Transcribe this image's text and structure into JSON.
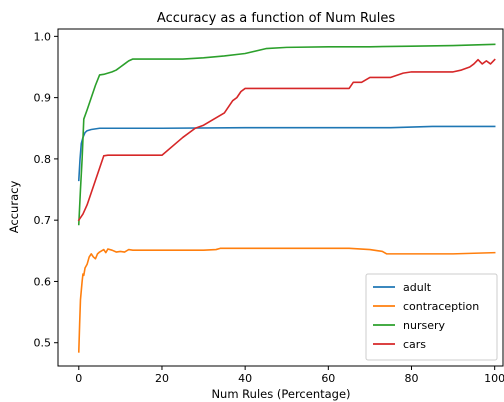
{
  "chart_data": {
    "type": "line",
    "title": "Accuracy as a function of Num Rules",
    "xlabel": "Num Rules (Percentage)",
    "ylabel": "Accuracy",
    "xlim": [
      -5,
      102
    ],
    "ylim": [
      0.462,
      1.012
    ],
    "xticks": [
      0,
      20,
      40,
      60,
      80,
      100
    ],
    "yticks": [
      0.5,
      0.6,
      0.7,
      0.8,
      0.9,
      1.0
    ],
    "ytick_labels": [
      "0.5",
      "0.6",
      "0.7",
      "0.8",
      "0.9",
      "1.0"
    ],
    "grid": false,
    "legend_position": "bottom-right",
    "series": [
      {
        "name": "adult",
        "color": "#1f77b4",
        "x": [
          0,
          0.3,
          0.6,
          1,
          1.5,
          2,
          3,
          5,
          10,
          20,
          40,
          60,
          75,
          80,
          85,
          100
        ],
        "y": [
          0.765,
          0.8,
          0.825,
          0.835,
          0.843,
          0.846,
          0.848,
          0.85,
          0.85,
          0.85,
          0.851,
          0.851,
          0.851,
          0.852,
          0.853,
          0.853
        ]
      },
      {
        "name": "contraception",
        "color": "#ff7f0e",
        "x": [
          0,
          0.2,
          0.4,
          0.6,
          0.8,
          1,
          1.2,
          1.5,
          2,
          2.5,
          3,
          3.5,
          4,
          4.5,
          5,
          6,
          6.5,
          7,
          8,
          9,
          10,
          11,
          12,
          13,
          20,
          30,
          33,
          34,
          40,
          50,
          60,
          65,
          70,
          72,
          73,
          74,
          80,
          90,
          95,
          100
        ],
        "y": [
          0.485,
          0.53,
          0.57,
          0.585,
          0.6,
          0.612,
          0.61,
          0.622,
          0.628,
          0.64,
          0.645,
          0.64,
          0.637,
          0.645,
          0.648,
          0.652,
          0.647,
          0.653,
          0.651,
          0.648,
          0.649,
          0.648,
          0.652,
          0.651,
          0.651,
          0.651,
          0.652,
          0.654,
          0.654,
          0.654,
          0.654,
          0.654,
          0.652,
          0.65,
          0.649,
          0.645,
          0.645,
          0.645,
          0.646,
          0.647
        ]
      },
      {
        "name": "nursery",
        "color": "#2ca02c",
        "x": [
          0,
          0.4,
          0.8,
          1.2,
          2,
          3,
          4,
          5,
          6,
          7,
          8,
          9,
          10,
          11,
          12,
          13,
          20,
          25,
          30,
          35,
          40,
          45,
          50,
          60,
          70,
          80,
          90,
          95,
          100
        ],
        "y": [
          0.693,
          0.75,
          0.8,
          0.865,
          0.88,
          0.9,
          0.92,
          0.937,
          0.938,
          0.94,
          0.942,
          0.945,
          0.95,
          0.955,
          0.96,
          0.963,
          0.963,
          0.963,
          0.965,
          0.968,
          0.972,
          0.98,
          0.982,
          0.983,
          0.983,
          0.984,
          0.985,
          0.986,
          0.987
        ]
      },
      {
        "name": "cars",
        "color": "#d62728",
        "x": [
          0,
          1,
          2,
          3,
          4,
          5,
          6,
          7,
          20,
          25,
          28,
          30,
          35,
          37,
          38,
          39,
          40,
          45,
          50,
          55,
          60,
          65,
          66,
          68,
          70,
          75,
          78,
          80,
          85,
          90,
          92,
          94,
          95,
          96,
          97,
          98,
          99,
          100
        ],
        "y": [
          0.7,
          0.71,
          0.725,
          0.745,
          0.765,
          0.785,
          0.805,
          0.806,
          0.806,
          0.835,
          0.85,
          0.855,
          0.875,
          0.895,
          0.9,
          0.91,
          0.915,
          0.915,
          0.915,
          0.915,
          0.915,
          0.915,
          0.925,
          0.925,
          0.933,
          0.933,
          0.94,
          0.942,
          0.942,
          0.942,
          0.945,
          0.95,
          0.955,
          0.962,
          0.955,
          0.96,
          0.955,
          0.962
        ]
      }
    ]
  }
}
